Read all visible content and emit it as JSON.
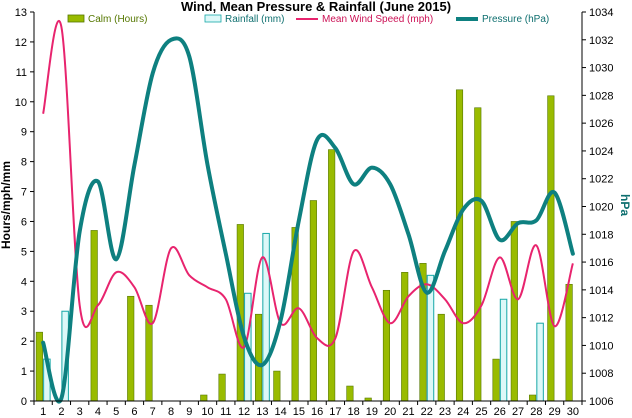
{
  "chart_data": {
    "type": "bar",
    "title": "Wind, Mean Pressure & Rainfall (June 2015)",
    "ylabel": "Hours/mph/mm",
    "y2label": "hPa",
    "ylim": [
      0,
      13
    ],
    "y2lim": [
      1006,
      1034
    ],
    "categories": [
      "1",
      "2",
      "3",
      "4",
      "5",
      "6",
      "7",
      "8",
      "9",
      "10",
      "11",
      "12",
      "13",
      "14",
      "15",
      "16",
      "17",
      "18",
      "19",
      "20",
      "21",
      "22",
      "23",
      "24",
      "25",
      "26",
      "27",
      "28",
      "29",
      "30"
    ],
    "y_ticks": [
      "0",
      "1",
      "2",
      "3",
      "4",
      "5",
      "6",
      "7",
      "8",
      "9",
      "10",
      "11",
      "12",
      "13"
    ],
    "y2_ticks": [
      "1006",
      "1008",
      "1010",
      "1012",
      "1014",
      "1016",
      "1018",
      "1020",
      "1022",
      "1024",
      "1026",
      "1028",
      "1030",
      "1032",
      "1034"
    ],
    "grid": false,
    "legend_position": "top",
    "series": [
      {
        "name": "Calm (Hours)",
        "kind": "bar",
        "axis": "left",
        "color": "#99bb00",
        "values": [
          2.3,
          0,
          0,
          5.7,
          0,
          3.5,
          3.2,
          0,
          0,
          0.2,
          0.9,
          5.9,
          2.9,
          1.0,
          5.8,
          6.7,
          8.4,
          0.5,
          0.1,
          3.7,
          4.3,
          4.6,
          2.9,
          10.4,
          9.8,
          1.4,
          6.0,
          0.2,
          10.2,
          3.9
        ]
      },
      {
        "name": "Rainfall (mm)",
        "kind": "bar",
        "axis": "left",
        "color": "#ddf8f8",
        "values": [
          1.4,
          3.0,
          0,
          0,
          0,
          0,
          0,
          0,
          0,
          0,
          0,
          3.6,
          5.6,
          0,
          0,
          0,
          0,
          0,
          0,
          0,
          0,
          4.2,
          0,
          0,
          0,
          3.4,
          0,
          2.6,
          0,
          0
        ]
      },
      {
        "name": "Mean Wind Speed (mph)",
        "kind": "line",
        "axis": "left",
        "color": "#e8246e",
        "values": [
          9.6,
          12.5,
          3.2,
          3.2,
          4.3,
          3.8,
          2.6,
          5.1,
          4.2,
          3.8,
          3.4,
          1.8,
          4.8,
          2.6,
          3.1,
          2.1,
          2.1,
          5.0,
          3.8,
          2.6,
          3.5,
          3.9,
          3.4,
          2.6,
          3.2,
          4.8,
          3.4,
          5.2,
          2.5,
          4.6
        ]
      },
      {
        "name": "Pressure (hPa)",
        "kind": "line",
        "axis": "right",
        "color": "#0e8080",
        "values": [
          1010.2,
          1006.2,
          1018.2,
          1021.8,
          1016.2,
          1023.0,
          1029.6,
          1032.0,
          1030.8,
          1023.0,
          1016.6,
          1010.6,
          1008.6,
          1011.8,
          1019.0,
          1024.8,
          1024.2,
          1021.6,
          1022.8,
          1021.6,
          1018.0,
          1013.8,
          1016.8,
          1019.8,
          1020.4,
          1017.6,
          1018.8,
          1019.0,
          1021.0,
          1016.6
        ]
      }
    ]
  }
}
